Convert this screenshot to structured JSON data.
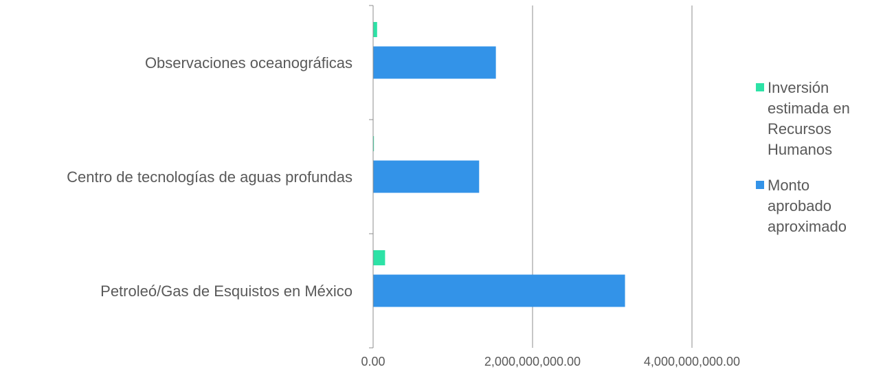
{
  "chart_data": {
    "type": "bar",
    "orientation": "horizontal",
    "categories": [
      "Observaciones oceanográficas",
      "Centro de tecnologías de aguas profundas",
      "Petroleó/Gas de Esquistos en México"
    ],
    "series": [
      {
        "name": "Inversión estimada en Recursos Humanos",
        "color": "#2de2a6",
        "values": [
          50000000,
          10000000,
          150000000
        ]
      },
      {
        "name": "Monto aprobado aproximado",
        "color": "#3393e8",
        "values": [
          1540000000,
          1330000000,
          3160000000
        ]
      }
    ],
    "x_ticks": [
      "0.00",
      "2,000,000,000.00",
      "4,000,000,000.00"
    ],
    "xlim": [
      0,
      4000000000
    ],
    "grid": "vertical",
    "legend_position": "right"
  }
}
